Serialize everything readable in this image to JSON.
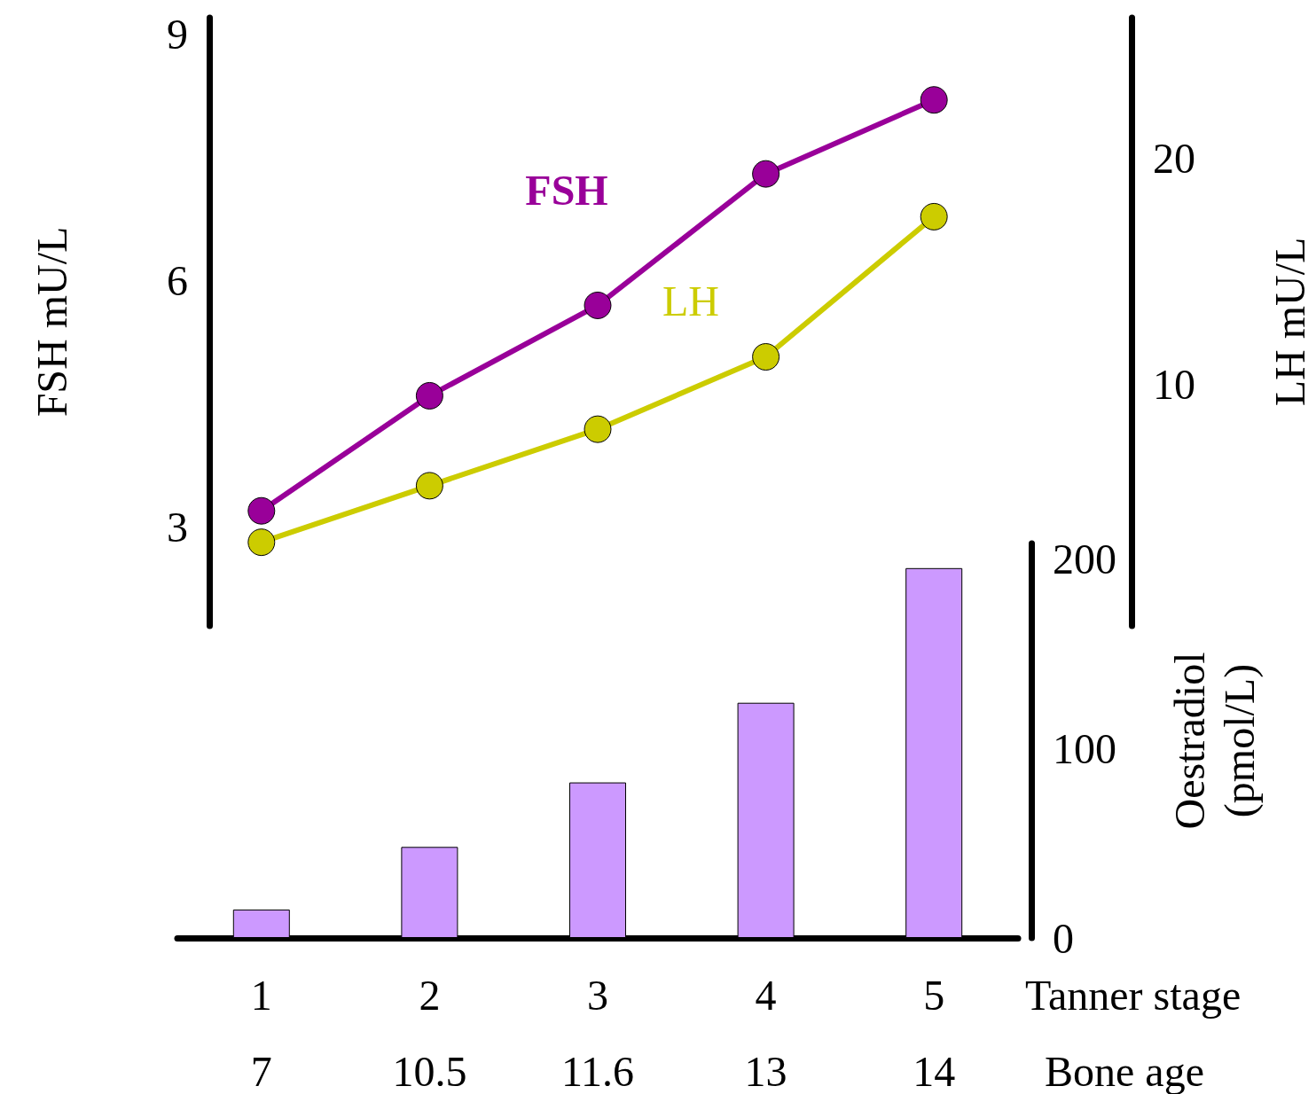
{
  "chart_data": [
    {
      "type": "line",
      "categories": [
        "1",
        "2",
        "3",
        "4",
        "5"
      ],
      "ylabel": "FSH mU/L",
      "y2label": "LH mU/L",
      "ylim": [
        1.8,
        9.2
      ],
      "yticks": [
        3,
        6,
        9
      ],
      "y2lim": [
        -0.7,
        26.2
      ],
      "y2ticks": [
        10,
        20
      ],
      "series": [
        {
          "name": "FSH",
          "color": "#990099",
          "values": [
            3.2,
            4.6,
            5.7,
            7.3,
            8.2
          ]
        },
        {
          "name": "LH",
          "color": "#cccc00",
          "axis": "y2",
          "values": [
            3.0,
            5.5,
            8.0,
            11.2,
            17.4
          ]
        }
      ],
      "marker": "circle",
      "line_style": "solid",
      "grid": false,
      "legend": false,
      "tick_labels": "y"
    },
    {
      "type": "bar",
      "categories": [
        "1",
        "2",
        "3",
        "4",
        "5"
      ],
      "xlabel": "Tanner stage",
      "ylabel": "Oestradiol\n(pmol/L)",
      "values": [
        15,
        48,
        82,
        124,
        195
      ],
      "color": "#cc99ff",
      "ylim": [
        0,
        208
      ],
      "yticks": [
        0,
        100,
        200
      ],
      "grid": false,
      "legend": false,
      "annotations": [
        "7",
        "10.5",
        "11.6",
        "13",
        "14",
        "Bone age"
      ]
    }
  ]
}
